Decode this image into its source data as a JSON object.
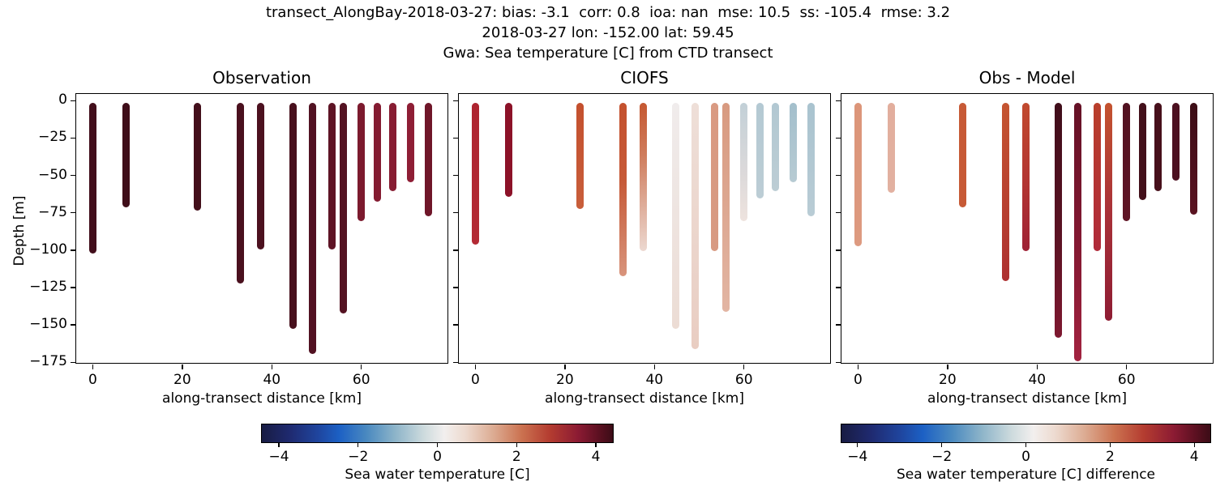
{
  "header": {
    "line1": "transect_AlongBay-2018-03-27: bias: -3.1  corr: 0.8  ioa: nan  mse: 10.5  ss: -105.4  rmse: 3.2",
    "line2": "2018-03-27 lon: -152.00 lat: 59.45",
    "line3": "Gwa: Sea temperature [C] from CTD transect"
  },
  "chart_data": [
    {
      "type": "bar",
      "orientation": "vertical-depth-profiles",
      "title": "Observation",
      "xlabel": "along-transect distance [km]",
      "ylabel": "Depth [m]",
      "xlim": [
        -3.7,
        79.6
      ],
      "ylim_top": 4.5,
      "ylim_bottom": -176.5,
      "xticks": [
        0,
        20,
        40,
        60
      ],
      "yticks": [
        0,
        -25,
        -50,
        -75,
        -100,
        -125,
        -150,
        -175
      ],
      "show_ytick_labels": true,
      "grid": false,
      "profiles": [
        {
          "km": 0,
          "top_m": -4,
          "bottom_m": -100,
          "temp_c_top": 4.2,
          "temp_c_bottom": 4.2,
          "stops": [
            [
              0,
              "#420e1b"
            ],
            [
              1,
              "#420e1b"
            ]
          ]
        },
        {
          "km": 7.5,
          "top_m": -4,
          "bottom_m": -69,
          "temp_c_top": 4.3,
          "temp_c_bottom": 4.3,
          "stops": [
            [
              0,
              "#3f0d19"
            ],
            [
              1,
              "#3f0d19"
            ]
          ]
        },
        {
          "km": 23.3,
          "top_m": -4,
          "bottom_m": -71,
          "temp_c_top": 4.2,
          "temp_c_bottom": 4.2,
          "stops": [
            [
              0,
              "#430f1b"
            ],
            [
              1,
              "#430f1b"
            ]
          ]
        },
        {
          "km": 33,
          "top_m": -4,
          "bottom_m": -120,
          "temp_c_top": 4.1,
          "temp_c_bottom": 4.1,
          "stops": [
            [
              0,
              "#4a101e"
            ],
            [
              1,
              "#4a101e"
            ]
          ]
        },
        {
          "km": 37.5,
          "top_m": -4,
          "bottom_m": -97,
          "temp_c_top": 4.1,
          "temp_c_bottom": 4.1,
          "stops": [
            [
              0,
              "#4c111f"
            ],
            [
              1,
              "#4c111f"
            ]
          ]
        },
        {
          "km": 44.8,
          "top_m": -4,
          "bottom_m": -150,
          "temp_c_top": 4.1,
          "temp_c_bottom": 4.1,
          "stops": [
            [
              0,
              "#48101d"
            ],
            [
              1,
              "#48101d"
            ]
          ]
        },
        {
          "km": 49,
          "top_m": -4,
          "bottom_m": -167,
          "temp_c_top": 4.0,
          "temp_c_bottom": 4.0,
          "stops": [
            [
              0,
              "#521222"
            ],
            [
              1,
              "#521222"
            ]
          ]
        },
        {
          "km": 53.5,
          "top_m": -4,
          "bottom_m": -97,
          "temp_c_top": 3.9,
          "temp_c_bottom": 3.9,
          "stops": [
            [
              0,
              "#5e1425"
            ],
            [
              1,
              "#5e1425"
            ]
          ]
        },
        {
          "km": 56,
          "top_m": -4,
          "bottom_m": -140,
          "temp_c_top": 4.0,
          "temp_c_bottom": 4.0,
          "stops": [
            [
              0,
              "#541222"
            ],
            [
              1,
              "#541222"
            ]
          ]
        },
        {
          "km": 60,
          "top_m": -4,
          "bottom_m": -78,
          "temp_c_top": 3.6,
          "temp_c_bottom": 3.6,
          "stops": [
            [
              0,
              "#7c1a2e"
            ],
            [
              1,
              "#7c1a2e"
            ]
          ]
        },
        {
          "km": 63.5,
          "top_m": -4,
          "bottom_m": -65,
          "temp_c_top": 3.5,
          "temp_c_bottom": 3.5,
          "stops": [
            [
              0,
              "#841b31"
            ],
            [
              1,
              "#841b31"
            ]
          ]
        },
        {
          "km": 67,
          "top_m": -4,
          "bottom_m": -58,
          "temp_c_top": 3.5,
          "temp_c_bottom": 3.5,
          "stops": [
            [
              0,
              "#871c32"
            ],
            [
              1,
              "#871c32"
            ]
          ]
        },
        {
          "km": 71,
          "top_m": -4,
          "bottom_m": -52,
          "temp_c_top": 3.4,
          "temp_c_bottom": 3.4,
          "stops": [
            [
              0,
              "#8e1e35"
            ],
            [
              1,
              "#8e1e35"
            ]
          ]
        },
        {
          "km": 75,
          "top_m": -4,
          "bottom_m": -75,
          "temp_c_top": 3.8,
          "temp_c_bottom": 3.8,
          "stops": [
            [
              0,
              "#6f1629"
            ],
            [
              1,
              "#6f1629"
            ]
          ]
        }
      ]
    },
    {
      "type": "bar",
      "orientation": "vertical-depth-profiles",
      "title": "CIOFS",
      "xlabel": "along-transect distance [km]",
      "ylabel": "",
      "xlim": [
        -3.7,
        79.6
      ],
      "ylim_top": 4.5,
      "ylim_bottom": -176.5,
      "xticks": [
        0,
        20,
        40,
        60
      ],
      "yticks": [
        0,
        -25,
        -50,
        -75,
        -100,
        -125,
        -150,
        -175
      ],
      "show_ytick_labels": false,
      "grid": false,
      "profiles": [
        {
          "km": 0,
          "top_m": -4,
          "bottom_m": -94,
          "temp_c_top": 3.2,
          "temp_c_bottom": 3.1,
          "stops": [
            [
              0,
              "#ae2430"
            ],
            [
              1,
              "#b32a34"
            ]
          ]
        },
        {
          "km": 7.5,
          "top_m": -4,
          "bottom_m": -62,
          "temp_c_top": 3.9,
          "temp_c_bottom": 3.9,
          "stops": [
            [
              0,
              "#8c1228"
            ],
            [
              1,
              "#8c1228"
            ]
          ]
        },
        {
          "km": 23.3,
          "top_m": -4,
          "bottom_m": -70,
          "temp_c_top": 2.6,
          "temp_c_bottom": 2.5,
          "stops": [
            [
              0,
              "#c4502e"
            ],
            [
              1,
              "#c85e3b"
            ]
          ]
        },
        {
          "km": 33,
          "top_m": -4,
          "bottom_m": -115,
          "temp_c_top": 2.6,
          "temp_c_bottom": 1.6,
          "stops": [
            [
              0,
              "#c4512e"
            ],
            [
              0.45,
              "#c65a38"
            ],
            [
              1,
              "#d8947c"
            ]
          ]
        },
        {
          "km": 37.5,
          "top_m": -4,
          "bottom_m": -98,
          "temp_c_top": 2.5,
          "temp_c_bottom": 0.4,
          "stops": [
            [
              0,
              "#c55831"
            ],
            [
              0.35,
              "#cf7c5c"
            ],
            [
              1,
              "#ecd8d0"
            ]
          ]
        },
        {
          "km": 44.8,
          "top_m": -4,
          "bottom_m": -150,
          "temp_c_top": 0.1,
          "temp_c_bottom": 0.3,
          "stops": [
            [
              0,
              "#f0ecec"
            ],
            [
              1,
              "#ecdcd4"
            ]
          ]
        },
        {
          "km": 49,
          "top_m": -4,
          "bottom_m": -164,
          "temp_c_top": 0.3,
          "temp_c_bottom": 0.6,
          "stops": [
            [
              0,
              "#eedfd8"
            ],
            [
              1,
              "#e9cdc2"
            ]
          ]
        },
        {
          "km": 53.5,
          "top_m": -4,
          "bottom_m": -98,
          "temp_c_top": 1.4,
          "temp_c_bottom": 1.4,
          "stops": [
            [
              0,
              "#d99a82"
            ],
            [
              1,
              "#d89a82"
            ]
          ]
        },
        {
          "km": 56,
          "top_m": -4,
          "bottom_m": -139,
          "temp_c_top": 1.4,
          "temp_c_bottom": 1.0,
          "stops": [
            [
              0,
              "#d89a80"
            ],
            [
              1,
              "#e2b5a3"
            ]
          ]
        },
        {
          "km": 60,
          "top_m": -4,
          "bottom_m": -78,
          "temp_c_top": -0.6,
          "temp_c_bottom": 0.2,
          "stops": [
            [
              0,
              "#c2d0d7"
            ],
            [
              0.6,
              "#dcd9da"
            ],
            [
              1,
              "#eee3de"
            ]
          ]
        },
        {
          "km": 63.5,
          "top_m": -4,
          "bottom_m": -63,
          "temp_c_top": -0.8,
          "temp_c_bottom": -0.7,
          "stops": [
            [
              0,
              "#b4c9d3"
            ],
            [
              1,
              "#bccdd5"
            ]
          ]
        },
        {
          "km": 67,
          "top_m": -4,
          "bottom_m": -58,
          "temp_c_top": -0.8,
          "temp_c_bottom": -0.7,
          "stops": [
            [
              0,
              "#b2c8d2"
            ],
            [
              1,
              "#bccdd4"
            ]
          ]
        },
        {
          "km": 71,
          "top_m": -4,
          "bottom_m": -52,
          "temp_c_top": -1.0,
          "temp_c_bottom": -0.8,
          "stops": [
            [
              0,
              "#a3bfcc"
            ],
            [
              1,
              "#b7cbd3"
            ]
          ]
        },
        {
          "km": 75,
          "top_m": -4,
          "bottom_m": -75,
          "temp_c_top": -0.9,
          "temp_c_bottom": -0.8,
          "stops": [
            [
              0,
              "#a9c3cf"
            ],
            [
              1,
              "#b9ccd5"
            ]
          ]
        }
      ]
    },
    {
      "type": "bar",
      "orientation": "vertical-depth-profiles",
      "title": "Obs - Model",
      "xlabel": "along-transect distance [km]",
      "ylabel": "",
      "xlim": [
        -3.7,
        79.6
      ],
      "ylim_top": 4.5,
      "ylim_bottom": -176.5,
      "xticks": [
        0,
        20,
        40,
        60
      ],
      "yticks": [
        0,
        -25,
        -50,
        -75,
        -100,
        -125,
        -150,
        -175
      ],
      "show_ytick_labels": false,
      "grid": false,
      "profiles": [
        {
          "km": 0,
          "top_m": -4,
          "bottom_m": -95,
          "temp_c_top": 1.5,
          "temp_c_bottom": 1.4,
          "stops": [
            [
              0,
              "#dc9579"
            ],
            [
              1,
              "#dd9a80"
            ]
          ]
        },
        {
          "km": 7.5,
          "top_m": -4,
          "bottom_m": -59,
          "temp_c_top": 1.1,
          "temp_c_bottom": 1.0,
          "stops": [
            [
              0,
              "#e2ae9d"
            ],
            [
              1,
              "#e2b1a1"
            ]
          ]
        },
        {
          "km": 23.3,
          "top_m": -4,
          "bottom_m": -69,
          "temp_c_top": 2.3,
          "temp_c_bottom": 2.3,
          "stops": [
            [
              0,
              "#c75a36"
            ],
            [
              1,
              "#c75a36"
            ]
          ]
        },
        {
          "km": 33,
          "top_m": -4,
          "bottom_m": -118,
          "temp_c_top": 2.4,
          "temp_c_bottom": 2.9,
          "stops": [
            [
              0,
              "#c55531"
            ],
            [
              1,
              "#ad3030"
            ]
          ]
        },
        {
          "km": 37.5,
          "top_m": -4,
          "bottom_m": -98,
          "temp_c_top": 2.6,
          "temp_c_bottom": 3.4,
          "stops": [
            [
              0,
              "#c14a2f"
            ],
            [
              0.55,
              "#b23432"
            ],
            [
              1,
              "#9e2135"
            ]
          ]
        },
        {
          "km": 44.8,
          "top_m": -4,
          "bottom_m": -156,
          "temp_c_top": 4.3,
          "temp_c_bottom": 3.7,
          "stops": [
            [
              0,
              "#3f0d1a"
            ],
            [
              0.6,
              "#5d1324"
            ],
            [
              1,
              "#7e1830"
            ]
          ]
        },
        {
          "km": 49,
          "top_m": -4,
          "bottom_m": -172,
          "temp_c_top": 3.9,
          "temp_c_bottom": 3.2,
          "stops": [
            [
              0,
              "#651126"
            ],
            [
              0.7,
              "#8c1b35"
            ],
            [
              1,
              "#a22340"
            ]
          ]
        },
        {
          "km": 53.5,
          "top_m": -4,
          "bottom_m": -98,
          "temp_c_top": 2.5,
          "temp_c_bottom": 3.1,
          "stops": [
            [
              0,
              "#b93f2b"
            ],
            [
              1,
              "#b02a3a"
            ]
          ]
        },
        {
          "km": 56,
          "top_m": -4,
          "bottom_m": -145,
          "temp_c_top": 2.3,
          "temp_c_bottom": 3.5,
          "stops": [
            [
              0,
              "#c4532f"
            ],
            [
              0.5,
              "#a93138"
            ],
            [
              1,
              "#8e1c33"
            ]
          ]
        },
        {
          "km": 60,
          "top_m": -4,
          "bottom_m": -78,
          "temp_c_top": 4.1,
          "temp_c_bottom": 4.0,
          "stops": [
            [
              0,
              "#521120"
            ],
            [
              1,
              "#601425"
            ]
          ]
        },
        {
          "km": 63.5,
          "top_m": -4,
          "bottom_m": -64,
          "temp_c_top": 4.3,
          "temp_c_bottom": 4.3,
          "stops": [
            [
              0,
              "#43101a"
            ],
            [
              1,
              "#43101a"
            ]
          ]
        },
        {
          "km": 67,
          "top_m": -4,
          "bottom_m": -58,
          "temp_c_top": 4.3,
          "temp_c_bottom": 4.3,
          "stops": [
            [
              0,
              "#47101b"
            ],
            [
              1,
              "#47101b"
            ]
          ]
        },
        {
          "km": 71,
          "top_m": -4,
          "bottom_m": -51,
          "temp_c_top": 4.2,
          "temp_c_bottom": 4.2,
          "stops": [
            [
              0,
              "#4c1020"
            ],
            [
              1,
              "#4c1020"
            ]
          ]
        },
        {
          "km": 75,
          "top_m": -4,
          "bottom_m": -74,
          "temp_c_top": 4.4,
          "temp_c_bottom": 4.0,
          "stops": [
            [
              0,
              "#3c0d16"
            ],
            [
              1,
              "#5a1321"
            ]
          ]
        }
      ]
    }
  ],
  "colorbars": [
    {
      "label": "Sea water temperature [C]",
      "ticks": [
        -4,
        -2,
        0,
        2,
        4
      ],
      "vmin": -4.45,
      "vmax": 4.45,
      "colormap": "balance",
      "gradient": [
        [
          0.0,
          "#181c43"
        ],
        [
          0.08,
          "#1f2a70"
        ],
        [
          0.16,
          "#1f459e"
        ],
        [
          0.22,
          "#1c60c4"
        ],
        [
          0.3,
          "#4b8ac0"
        ],
        [
          0.38,
          "#8db4c9"
        ],
        [
          0.46,
          "#ccdadd"
        ],
        [
          0.52,
          "#f2efee"
        ],
        [
          0.58,
          "#eddacf"
        ],
        [
          0.66,
          "#dcab92"
        ],
        [
          0.74,
          "#cb7250"
        ],
        [
          0.82,
          "#b43c30"
        ],
        [
          0.9,
          "#8c1b33"
        ],
        [
          0.96,
          "#5c1021"
        ],
        [
          1.0,
          "#3b0c16"
        ]
      ]
    },
    {
      "label": "Sea water temperature [C] difference",
      "ticks": [
        -4,
        -2,
        0,
        2,
        4
      ],
      "vmin": -4.4,
      "vmax": 4.4,
      "colormap": "balance",
      "gradient": [
        [
          0.0,
          "#181c43"
        ],
        [
          0.08,
          "#1f2a70"
        ],
        [
          0.16,
          "#1f459e"
        ],
        [
          0.22,
          "#1c60c4"
        ],
        [
          0.3,
          "#4b8ac0"
        ],
        [
          0.38,
          "#8db4c9"
        ],
        [
          0.46,
          "#ccdadd"
        ],
        [
          0.52,
          "#f2efee"
        ],
        [
          0.58,
          "#eddacf"
        ],
        [
          0.66,
          "#dcab92"
        ],
        [
          0.74,
          "#cb7250"
        ],
        [
          0.82,
          "#b43c30"
        ],
        [
          0.9,
          "#8c1b33"
        ],
        [
          0.96,
          "#5c1021"
        ],
        [
          1.0,
          "#3b0c16"
        ]
      ]
    }
  ]
}
